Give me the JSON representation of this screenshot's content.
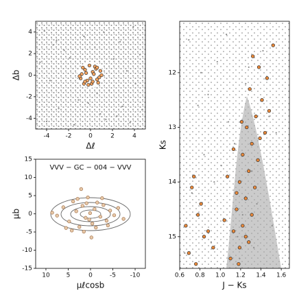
{
  "chart_data": [
    {
      "type": "scatter",
      "xlabel": "Δℓ",
      "ylabel": "Δb",
      "xlim": [
        -5,
        5
      ],
      "ylim": [
        -5,
        5
      ],
      "xticks": [
        -4,
        -2,
        0,
        2,
        4
      ],
      "yticks": [
        -4,
        -2,
        0,
        2,
        4
      ],
      "series": [
        {
          "color": "#8c8c8c",
          "x": [
            -4.2,
            -3.1,
            -1.8,
            -0.6,
            1.2,
            2.7,
            3.9,
            4.5,
            -4.6,
            -2.4,
            0.4,
            2.1,
            3.3,
            -3.7,
            -1.1,
            1.7,
            4.1,
            -2.9,
            0.9,
            2.9,
            -4.0,
            -1.5,
            1.4,
            3.6,
            -0.2,
            -3.4,
            2.4,
            4.7,
            -1.9,
            0.6
          ],
          "y": [
            4.1,
            3.2,
            4.4,
            3.6,
            4.0,
            3.1,
            4.5,
            1.9,
            1.2,
            2.3,
            2.6,
            1.5,
            0.4,
            -0.5,
            -2.3,
            -1.4,
            -0.8,
            -3.1,
            -3.6,
            -2.9,
            -4.3,
            -4.6,
            -4.1,
            -4.4,
            -2.6,
            2.8,
            -3.8,
            -3.2,
            1.6,
            -1.7
          ]
        },
        {
          "color": "#f4a460",
          "edgecolor": "#2b2b2b",
          "x": [
            0.2,
            -0.5,
            0.6,
            -0.8,
            0.1,
            0.9,
            -0.3,
            0.4,
            -0.9,
            0.7,
            -0.1,
            0.3,
            -0.6,
            0.8,
            -0.4,
            0.0,
            0.5,
            -0.7,
            0.2,
            -0.2,
            1.0,
            -1.0,
            0.6,
            -0.5
          ],
          "y": [
            0.3,
            0.5,
            -0.4,
            0.1,
            -0.8,
            0.4,
            -0.5,
            0.8,
            -0.3,
            -0.7,
            0.9,
            0.1,
            -0.8,
            -0.2,
            0.2,
            -0.3,
            0.6,
            0.7,
            -0.6,
            -0.9,
            0.0,
            -0.1,
            0.7,
            -0.6
          ]
        }
      ]
    },
    {
      "type": "scatter",
      "xlabel": "μℓcosb",
      "ylabel": "μb",
      "annotation": "VVV − GC − 004  −  VVV",
      "xlim": [
        12.3,
        -12.3
      ],
      "ylim": [
        -15,
        15
      ],
      "xticks": [
        10,
        5,
        0,
        -5,
        -10
      ],
      "yticks": [
        -15,
        -10,
        -5,
        0,
        5,
        10,
        15
      ],
      "series": [
        {
          "color": "#e8c9a8",
          "edgecolor": "#a0704a",
          "x": [
            7.5,
            6.1,
            4.8,
            3.9,
            3.2,
            2.5,
            1.8,
            1.1,
            0.6,
            0.1,
            -0.4,
            -0.9,
            -1.5,
            -2.2,
            -2.9,
            -3.6,
            -4.4,
            -5.3,
            -6.2,
            5.5,
            4.2,
            2.9,
            1.5,
            0.3,
            -1.2,
            -2.6,
            -3.9,
            8.6,
            -7.4,
            0.9,
            -0.2,
            2.1
          ],
          "y": [
            -0.5,
            1.8,
            -2.1,
            3.4,
            0.7,
            -3.6,
            2.2,
            -1.1,
            4.5,
            0.2,
            -2.7,
            1.3,
            3.1,
            -0.8,
            2.4,
            -1.9,
            0.9,
            -0.4,
            1.6,
            -3.9,
            -4.6,
            4.1,
            -4.9,
            -1.6,
            -3.8,
            4.3,
            -3.2,
            0.3,
            -1.4,
            2.9,
            -6.5,
            6.8
          ]
        }
      ]
    },
    {
      "type": "scatter",
      "xlabel": "J − Ks",
      "ylabel": "Ks",
      "xlim": [
        0.6,
        1.68
      ],
      "ylim": [
        15.58,
        11.06
      ],
      "xticks": [
        0.6,
        0.8,
        {
          "value": 1.0,
          "label": "1.0"
        },
        1.2,
        1.4,
        1.6
      ],
      "yticks": [
        12,
        13,
        14,
        15
      ],
      "series": [
        {
          "color": "#8c8c8c",
          "x": [
            0.65,
            0.72,
            0.78,
            0.84,
            0.91,
            0.97,
            1.03,
            1.08,
            1.14,
            1.19,
            1.25,
            1.31,
            1.36,
            1.42,
            1.48,
            1.55,
            0.69,
            0.81,
            0.94,
            1.06,
            1.17,
            1.28,
            1.39,
            1.51,
            0.75,
            0.88,
            1.01,
            1.22,
            1.33,
            1.45
          ],
          "y": [
            15.3,
            14.2,
            12.6,
            13.5,
            15.1,
            11.8,
            14.7,
            12.9,
            13.3,
            15.4,
            12.2,
            13.8,
            14.4,
            11.6,
            12.8,
            13.1,
            11.4,
            12.0,
            14.0,
            11.3,
            15.0,
            11.9,
            13.2,
            14.8,
            15.5,
            12.4,
            13.7,
            14.6,
            15.2,
            12.1
          ]
        },
        {
          "color": "#e8883a",
          "edgecolor": "#2b2b2b",
          "x": [
            1.32,
            1.38,
            1.29,
            1.41,
            1.35,
            1.26,
            1.44,
            1.31,
            1.22,
            1.37,
            1.28,
            1.19,
            1.34,
            1.25,
            1.16,
            1.31,
            1.22,
            1.13,
            1.28,
            1.19,
            1.1,
            1.25,
            1.16,
            1.07,
            1.21,
            1.13,
            1.04,
            1.18,
            1.46,
            1.52,
            1.39,
            1.48,
            0.72,
            0.78,
            0.84,
            0.69,
            0.81,
            0.76,
            0.88,
            0.66,
            0.93,
            0.74
          ],
          "y": [
            11.7,
            11.9,
            12.3,
            12.5,
            12.8,
            13.0,
            13.1,
            13.3,
            13.5,
            13.6,
            13.8,
            14.0,
            14.1,
            14.3,
            14.5,
            14.6,
            14.8,
            14.9,
            15.1,
            15.2,
            15.4,
            15.0,
            14.2,
            13.9,
            12.9,
            13.4,
            14.7,
            15.5,
            12.1,
            11.5,
            13.2,
            12.7,
            14.1,
            14.6,
            15.0,
            15.3,
            14.4,
            15.5,
            14.9,
            14.8,
            15.2,
            13.9
          ]
        }
      ]
    }
  ]
}
